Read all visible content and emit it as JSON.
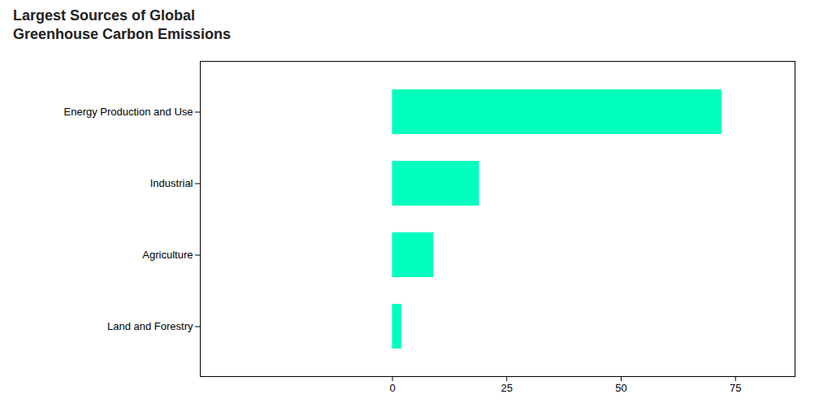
{
  "chart_data": {
    "type": "bar",
    "orientation": "horizontal",
    "title": "Largest Sources of Global\nGreenhouse Carbon Emissions",
    "categories": [
      "Energy Production and Use",
      "Industrial",
      "Agriculture",
      "Land and Forestry"
    ],
    "values": [
      72,
      19,
      9,
      2
    ],
    "color": "#00FFBE",
    "xlim": [
      -42,
      88
    ],
    "xticks": [
      0,
      25,
      50,
      75
    ],
    "grid": false
  }
}
